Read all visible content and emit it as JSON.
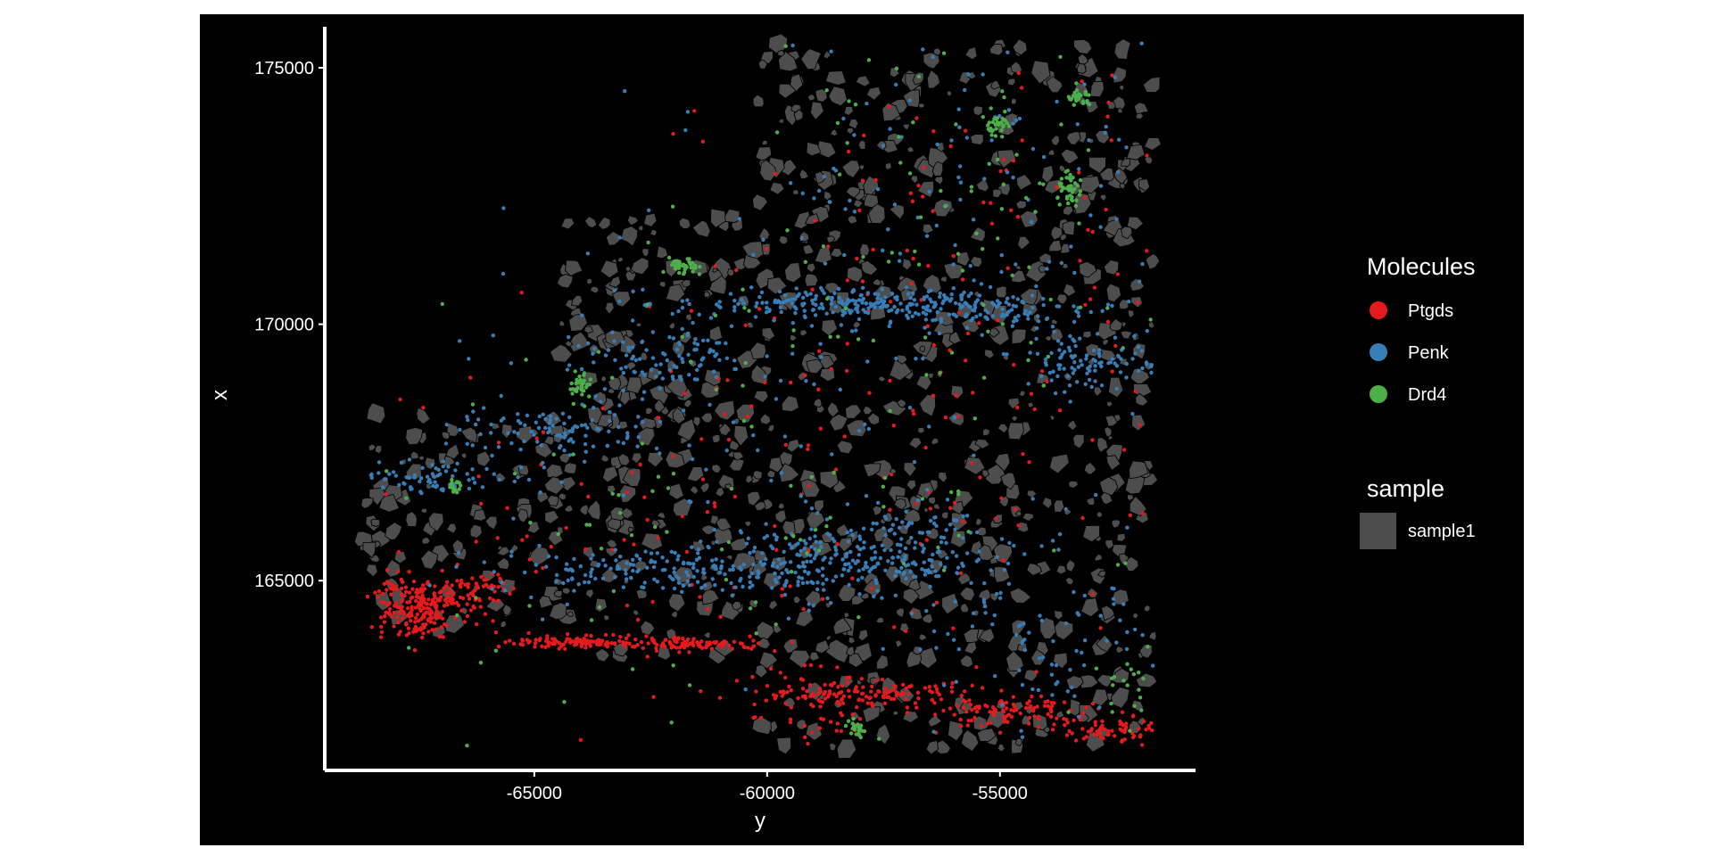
{
  "chart_data": {
    "type": "scatter",
    "title": "",
    "xlabel": "y",
    "ylabel": "x",
    "xlim": [
      -69500,
      -50800
    ],
    "ylim": [
      161300,
      175800
    ],
    "x_ticks": [
      {
        "value": -65000,
        "label": "-65000"
      },
      {
        "value": -60000,
        "label": "-60000"
      },
      {
        "value": -55000,
        "label": "-55000"
      }
    ],
    "y_ticks": [
      {
        "value": 165000,
        "label": "165000"
      },
      {
        "value": 170000,
        "label": "170000"
      },
      {
        "value": 175000,
        "label": "175000"
      }
    ],
    "background_color": "#000000",
    "grid": false,
    "legend_position": "right",
    "legend": {
      "molecules_title": "Molecules",
      "sample_title": "sample",
      "molecules": [
        {
          "name": "Ptgds",
          "color": "#E41A1C"
        },
        {
          "name": "Penk",
          "color": "#377EB8"
        },
        {
          "name": "Drd4",
          "color": "#4DAF4A"
        }
      ],
      "samples": [
        {
          "name": "sample1",
          "color": "#4D4D4D"
        }
      ]
    },
    "tissue_region": [
      [
        -68700,
        164000
      ],
      [
        -68700,
        168300
      ],
      [
        -64500,
        168300
      ],
      [
        -64500,
        172100
      ],
      [
        -60200,
        172100
      ],
      [
        -60200,
        175500
      ],
      [
        -51700,
        175500
      ],
      [
        -51700,
        161700
      ],
      [
        -60200,
        161700
      ],
      [
        -60200,
        163500
      ],
      [
        -64500,
        163500
      ],
      [
        -64500,
        164000
      ]
    ],
    "series": [
      {
        "name": "Ptgds",
        "color": "#E41A1C",
        "clusters": [
          {
            "x": -67600,
            "y": 164500,
            "sx": 500,
            "sy": 300,
            "n": 220
          },
          {
            "x": -66300,
            "y": 164800,
            "sx": 400,
            "sy": 180,
            "n": 60
          },
          {
            "x": -63700,
            "y": 163800,
            "sx": 900,
            "sy": 60,
            "n": 140
          },
          {
            "x": -61400,
            "y": 163750,
            "sx": 700,
            "sy": 60,
            "n": 70
          },
          {
            "x": -57800,
            "y": 162800,
            "sx": 1200,
            "sy": 120,
            "n": 120
          },
          {
            "x": -54800,
            "y": 162450,
            "sx": 1200,
            "sy": 150,
            "n": 110
          },
          {
            "x": -52700,
            "y": 162050,
            "sx": 700,
            "sy": 120,
            "n": 60
          },
          {
            "x": -59200,
            "y": 162600,
            "sx": 600,
            "sy": 400,
            "n": 50
          },
          {
            "x": -60000,
            "y": 166500,
            "sx": 4500,
            "sy": 1800,
            "n": 160
          },
          {
            "x": -56000,
            "y": 172000,
            "sx": 2400,
            "sy": 2500,
            "n": 120
          }
        ]
      },
      {
        "name": "Penk",
        "color": "#377EB8",
        "clusters": [
          {
            "x": -67000,
            "y": 167000,
            "sx": 900,
            "sy": 160,
            "n": 80
          },
          {
            "x": -64500,
            "y": 167900,
            "sx": 1100,
            "sy": 250,
            "n": 100
          },
          {
            "x": -62200,
            "y": 169300,
            "sx": 1000,
            "sy": 300,
            "n": 90
          },
          {
            "x": -59000,
            "y": 170400,
            "sx": 1500,
            "sy": 150,
            "n": 170
          },
          {
            "x": -55800,
            "y": 170300,
            "sx": 1400,
            "sy": 200,
            "n": 160
          },
          {
            "x": -53000,
            "y": 169300,
            "sx": 800,
            "sy": 300,
            "n": 100
          },
          {
            "x": -62500,
            "y": 165200,
            "sx": 1700,
            "sy": 220,
            "n": 160
          },
          {
            "x": -59300,
            "y": 165300,
            "sx": 1200,
            "sy": 350,
            "n": 160
          },
          {
            "x": -57200,
            "y": 165700,
            "sx": 1000,
            "sy": 450,
            "n": 140
          },
          {
            "x": -54000,
            "y": 164200,
            "sx": 1600,
            "sy": 1100,
            "n": 110
          },
          {
            "x": -56000,
            "y": 172500,
            "sx": 2400,
            "sy": 2300,
            "n": 160
          },
          {
            "x": -62000,
            "y": 168500,
            "sx": 2500,
            "sy": 1800,
            "n": 70
          }
        ]
      },
      {
        "name": "Drd4",
        "color": "#4DAF4A",
        "clusters": [
          {
            "x": -61800,
            "y": 171100,
            "sx": 150,
            "sy": 90,
            "n": 40
          },
          {
            "x": -64000,
            "y": 168800,
            "sx": 120,
            "sy": 150,
            "n": 35
          },
          {
            "x": -55000,
            "y": 173900,
            "sx": 130,
            "sy": 90,
            "n": 30
          },
          {
            "x": -53500,
            "y": 172600,
            "sx": 130,
            "sy": 150,
            "n": 40
          },
          {
            "x": -53300,
            "y": 174400,
            "sx": 150,
            "sy": 90,
            "n": 30
          },
          {
            "x": -58100,
            "y": 162100,
            "sx": 120,
            "sy": 80,
            "n": 25
          },
          {
            "x": -66700,
            "y": 166800,
            "sx": 100,
            "sy": 100,
            "n": 15
          },
          {
            "x": -56000,
            "y": 173000,
            "sx": 2400,
            "sy": 2300,
            "n": 90
          },
          {
            "x": -60500,
            "y": 166500,
            "sx": 4000,
            "sy": 2000,
            "n": 110
          },
          {
            "x": -52200,
            "y": 163000,
            "sx": 300,
            "sy": 400,
            "n": 20
          }
        ]
      }
    ]
  }
}
